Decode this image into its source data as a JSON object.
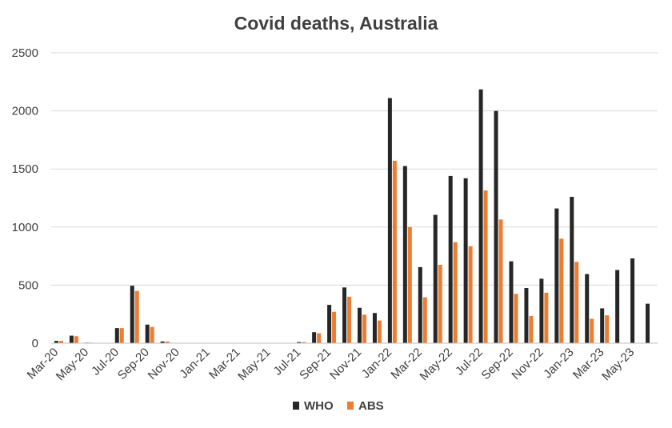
{
  "chart_data": {
    "type": "bar",
    "title": "Covid deaths, Australia",
    "xlabel": "",
    "ylabel": "",
    "ylim": [
      0,
      2500
    ],
    "yticks": [
      "0",
      "500",
      "1000",
      "1500",
      "2000",
      "2500"
    ],
    "grid": "horizontal",
    "legend_position": "bottom",
    "categories": [
      "Mar-20",
      "Apr-20",
      "May-20",
      "Jun-20",
      "Jul-20",
      "Aug-20",
      "Sep-20",
      "Oct-20",
      "Nov-20",
      "Dec-20",
      "Jan-21",
      "Feb-21",
      "Mar-21",
      "Apr-21",
      "May-21",
      "Jun-21",
      "Jul-21",
      "Aug-21",
      "Sep-21",
      "Oct-21",
      "Nov-21",
      "Dec-21",
      "Jan-22",
      "Feb-22",
      "Mar-22",
      "Apr-22",
      "May-22",
      "Jun-22",
      "Jul-22",
      "Aug-22",
      "Sep-22",
      "Oct-22",
      "Nov-22",
      "Dec-22",
      "Jan-23",
      "Feb-23",
      "Mar-23",
      "Apr-23",
      "May-23",
      "Jun-23"
    ],
    "tick_labels": [
      "Mar-20",
      "May-20",
      "Jul-20",
      "Sep-20",
      "Nov-20",
      "Jan-21",
      "Mar-21",
      "May-21",
      "Jul-21",
      "Sep-21",
      "Nov-21",
      "Jan-22",
      "Mar-22",
      "May-22",
      "Jul-22",
      "Sep-22",
      "Nov-22",
      "Jan-23",
      "Mar-23",
      "May-23"
    ],
    "series": [
      {
        "name": "WHO",
        "color": "#262626",
        "values": [
          20,
          65,
          5,
          3,
          130,
          495,
          160,
          15,
          1,
          1,
          0,
          0,
          0,
          0,
          0,
          0,
          10,
          95,
          330,
          480,
          305,
          260,
          2110,
          1525,
          655,
          1105,
          1440,
          1420,
          2185,
          2000,
          705,
          475,
          555,
          1160,
          1260,
          595,
          300,
          630,
          730,
          340
        ]
      },
      {
        "name": "ABS",
        "color": "#ED7D31",
        "values": [
          20,
          60,
          5,
          3,
          130,
          450,
          140,
          15,
          1,
          1,
          0,
          0,
          0,
          0,
          0,
          0,
          10,
          85,
          270,
          400,
          245,
          195,
          1570,
          1000,
          395,
          675,
          870,
          835,
          1315,
          1065,
          425,
          235,
          435,
          900,
          700,
          210,
          240,
          null,
          null,
          null
        ]
      }
    ]
  }
}
